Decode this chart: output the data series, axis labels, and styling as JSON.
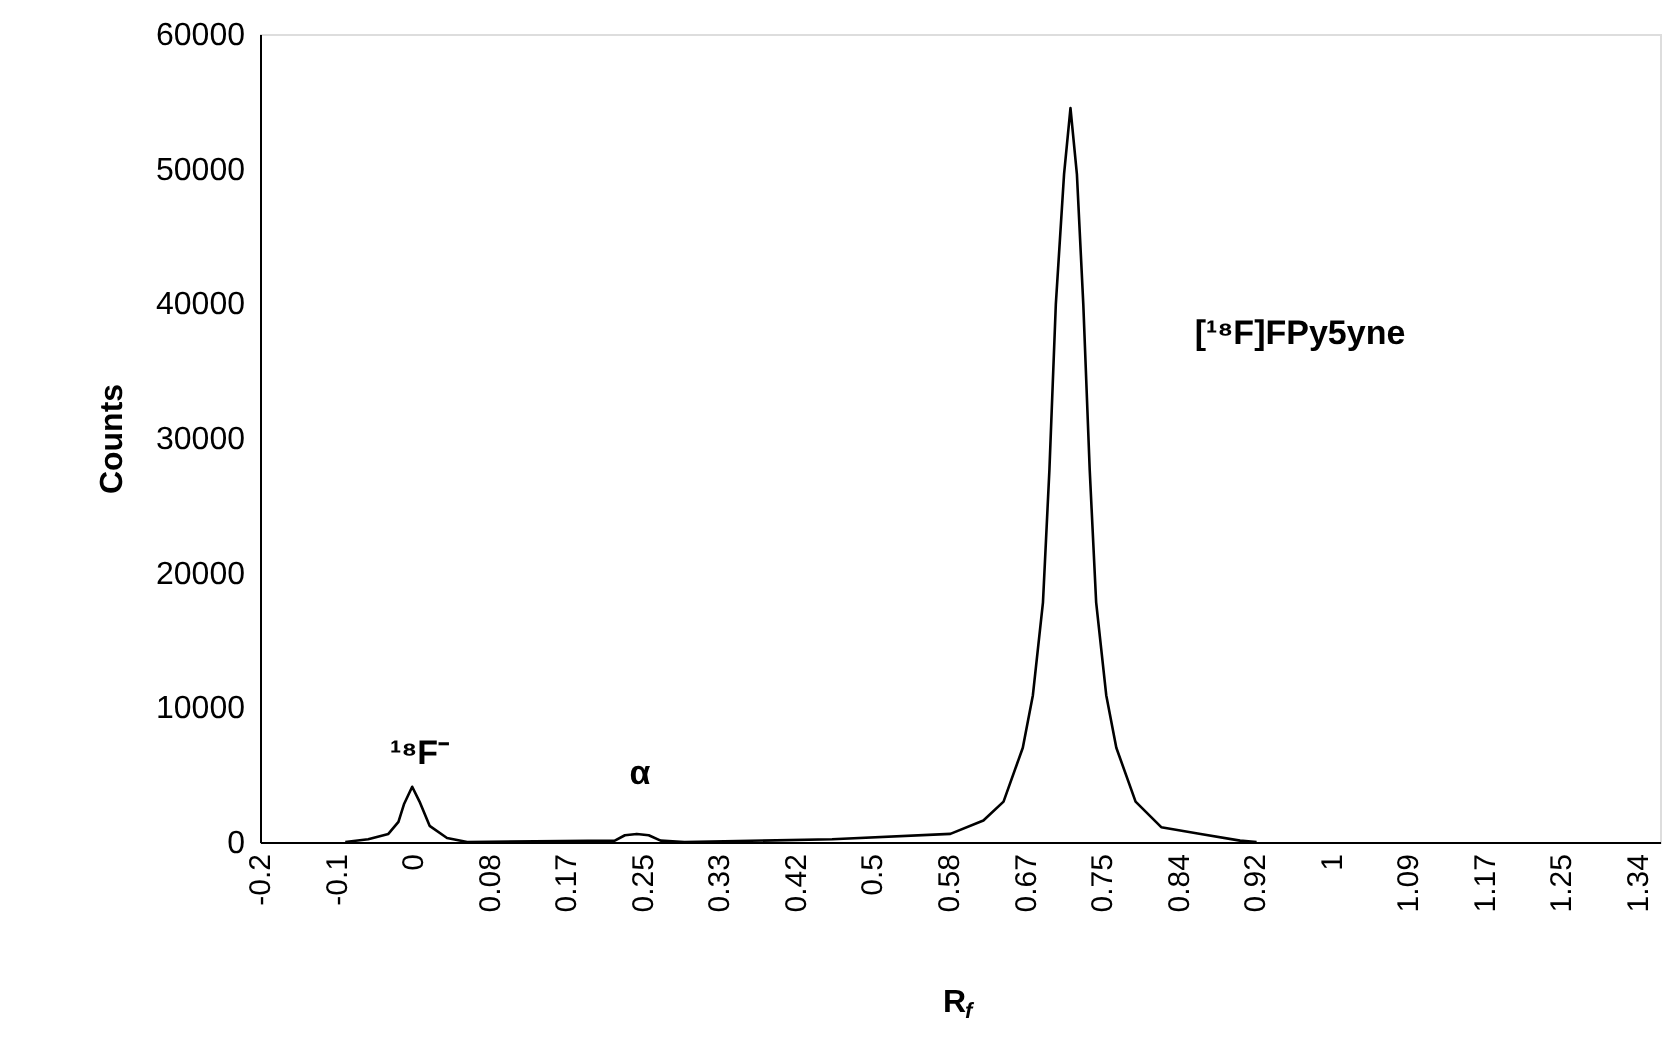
{
  "chart_data": {
    "type": "line",
    "xlabel": "R$_{f}$",
    "ylabel": "Counts",
    "x": [
      -0.074,
      -0.049,
      -0.027,
      -0.016,
      -0.01,
      -0.001,
      0.007,
      0.018,
      0.037,
      0.059,
      0.22,
      0.231,
      0.244,
      0.257,
      0.27,
      0.296,
      0.457,
      0.586,
      0.622,
      0.644,
      0.665,
      0.676,
      0.687,
      0.694,
      0.701,
      0.71,
      0.717,
      0.724,
      0.731,
      0.738,
      0.745,
      0.756,
      0.767,
      0.788,
      0.816,
      0.859,
      0.902,
      0.92
    ],
    "series": [
      {
        "color": "#000000",
        "values": [
          0,
          200,
          600,
          1500,
          2800,
          4100,
          3000,
          1200,
          300,
          0,
          100,
          500,
          600,
          500,
          100,
          0,
          200,
          600,
          1600,
          3000,
          7000,
          10900,
          17800,
          27600,
          39900,
          49600,
          54500,
          49600,
          39900,
          27600,
          17800,
          10900,
          7000,
          3000,
          1100,
          600,
          100,
          0
        ]
      }
    ],
    "xlim": [
      -0.167,
      1.36
    ],
    "xticks": [
      {
        "value": -0.167,
        "label": "-0.2"
      },
      {
        "value": -0.0835,
        "label": "-0.1"
      },
      0,
      {
        "value": 0.0835,
        "label": "0.08"
      },
      {
        "value": 0.167,
        "label": "0.17"
      },
      {
        "value": 0.2505,
        "label": "0.25"
      },
      {
        "value": 0.334,
        "label": "0.33"
      },
      {
        "value": 0.4175,
        "label": "0.42"
      },
      {
        "value": 0.501,
        "label": "0.5"
      },
      {
        "value": 0.5845,
        "label": "0.58"
      },
      {
        "value": 0.668,
        "label": "0.67"
      },
      {
        "value": 0.7515,
        "label": "0.75"
      },
      {
        "value": 0.835,
        "label": "0.84"
      },
      {
        "value": 0.9185,
        "label": "0.92"
      },
      {
        "value": 1.002,
        "label": "1"
      },
      {
        "value": 1.0855,
        "label": "1.09"
      },
      {
        "value": 1.169,
        "label": "1.17"
      },
      {
        "value": 1.2525,
        "label": "1.25"
      },
      {
        "value": 1.336,
        "label": "1.34"
      }
    ],
    "ylim": [
      0,
      60000
    ],
    "yticks": [
      0,
      10000,
      20000,
      30000,
      40000,
      50000,
      60000
    ],
    "grid": false,
    "marker": "none",
    "line_style": "solid",
    "annotations": [
      "¹⁸F⁻",
      "α",
      "[¹⁸F]FPy5yne"
    ]
  }
}
